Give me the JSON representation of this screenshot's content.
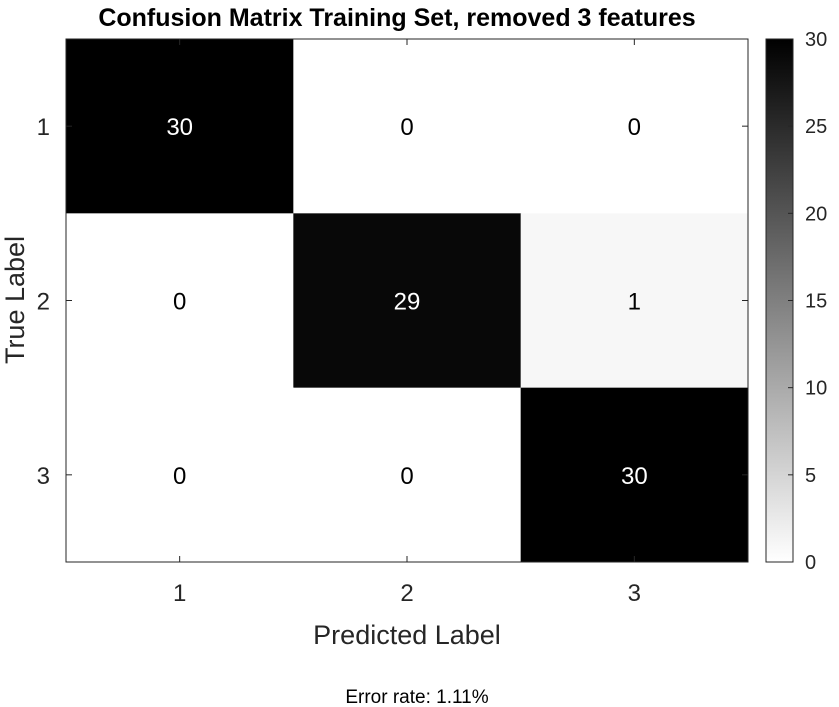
{
  "chart_data": {
    "type": "heatmap",
    "title": "Confusion Matrix Training Set, removed 3 features",
    "xlabel": "Predicted Label",
    "ylabel": "True Label",
    "x_categories": [
      "1",
      "2",
      "3"
    ],
    "y_categories": [
      "1",
      "2",
      "3"
    ],
    "values": [
      [
        30,
        0,
        0
      ],
      [
        0,
        29,
        1
      ],
      [
        0,
        0,
        30
      ]
    ],
    "colormap": "gray-reversed",
    "low_color": "#ffffff",
    "high_color": "#000000",
    "colorbar": {
      "range": [
        0,
        30
      ],
      "ticks": [
        "0",
        "5",
        "10",
        "15",
        "20",
        "25",
        "30"
      ]
    },
    "annotation": "Error rate: 1.11%"
  }
}
